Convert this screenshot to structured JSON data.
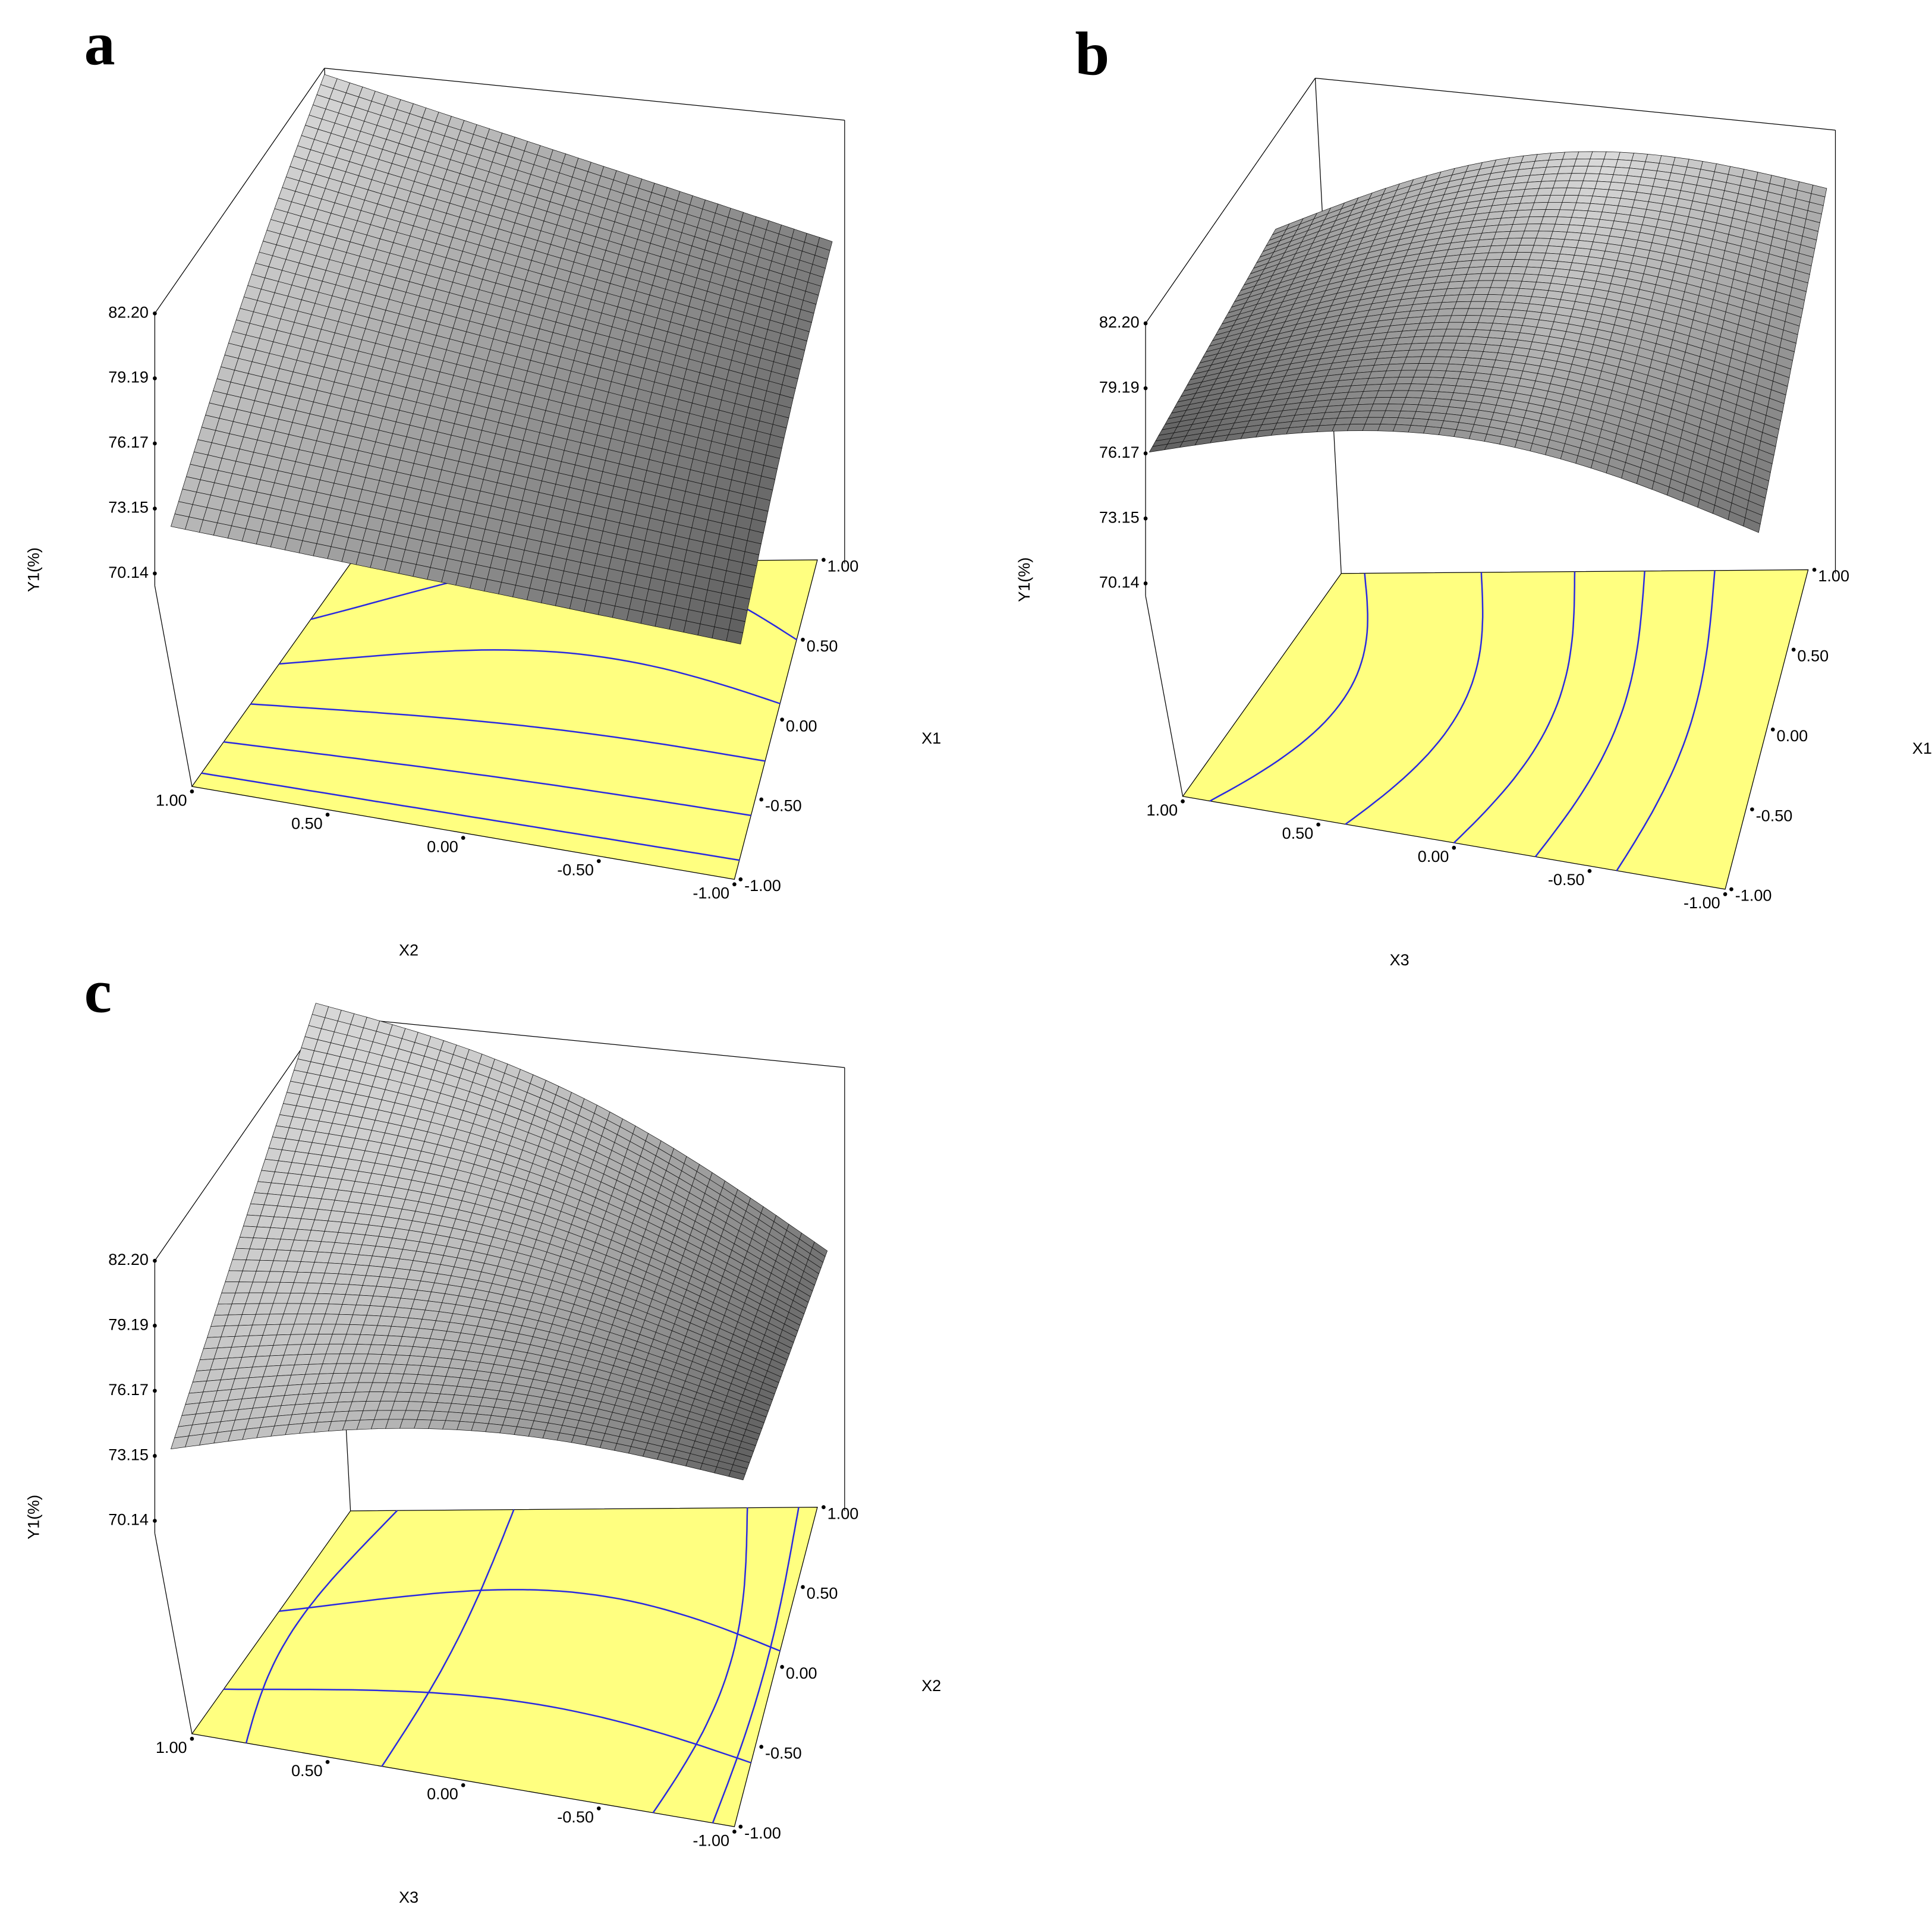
{
  "chart_data": [
    {
      "type": "surface3d",
      "label": "a",
      "zlabel": "Y1(%)",
      "xlabel": "X2",
      "ylabel": "X1",
      "zlim": [
        70.14,
        82.2
      ],
      "zticks": [
        70.14,
        73.15,
        76.17,
        79.19,
        {
          "value": 82.2,
          "label": "82.20"
        }
      ],
      "xlim": [
        1,
        -1
      ],
      "xticks": [
        {
          "value": 1,
          "label": "1.00"
        },
        {
          "value": 0.5,
          "label": "0.50"
        },
        {
          "value": 0,
          "label": "0.00"
        },
        {
          "value": -0.5,
          "label": "-0.50"
        },
        {
          "value": -1,
          "label": "-1.00"
        }
      ],
      "ylim": [
        -1,
        1
      ],
      "yticks": [
        {
          "value": -1,
          "label": "-1.00"
        },
        {
          "value": -0.5,
          "label": "-0.50"
        },
        {
          "value": 0,
          "label": "0.00"
        },
        {
          "value": 0.5,
          "label": "0.50"
        },
        {
          "value": 1,
          "label": "1.00"
        }
      ],
      "surface_color": "#808080",
      "floor_color": "#ffff80",
      "contour_color": "#2a2ae0"
    },
    {
      "type": "surface3d",
      "label": "b",
      "zlabel": "Y1(%)",
      "xlabel": "X3",
      "ylabel": "X1",
      "zlim": [
        70.14,
        82.2
      ],
      "zticks": [
        70.14,
        73.15,
        76.17,
        79.19,
        {
          "value": 82.2,
          "label": "82.20"
        }
      ],
      "xlim": [
        1,
        -1
      ],
      "xticks": [
        {
          "value": 1,
          "label": "1.00"
        },
        {
          "value": 0.5,
          "label": "0.50"
        },
        {
          "value": 0,
          "label": "0.00"
        },
        {
          "value": -0.5,
          "label": "-0.50"
        },
        {
          "value": -1,
          "label": "-1.00"
        }
      ],
      "ylim": [
        -1,
        1
      ],
      "yticks": [
        {
          "value": -1,
          "label": "-1.00"
        },
        {
          "value": -0.5,
          "label": "-0.50"
        },
        {
          "value": 0,
          "label": "0.00"
        },
        {
          "value": 0.5,
          "label": "0.50"
        },
        {
          "value": 1,
          "label": "1.00"
        }
      ],
      "surface_color": "#808080",
      "floor_color": "#ffff80",
      "contour_color": "#2a2ae0"
    },
    {
      "type": "surface3d",
      "label": "c",
      "zlabel": "Y1(%)",
      "xlabel": "X3",
      "ylabel": "X2",
      "zlim": [
        70.14,
        82.2
      ],
      "zticks": [
        70.14,
        73.15,
        76.17,
        79.19,
        {
          "value": 82.2,
          "label": "82.20"
        }
      ],
      "xlim": [
        1,
        -1
      ],
      "xticks": [
        {
          "value": 1,
          "label": "1.00"
        },
        {
          "value": 0.5,
          "label": "0.50"
        },
        {
          "value": 0,
          "label": "0.00"
        },
        {
          "value": -0.5,
          "label": "-0.50"
        },
        {
          "value": -1,
          "label": "-1.00"
        }
      ],
      "ylim": [
        -1,
        1
      ],
      "yticks": [
        {
          "value": -1,
          "label": "-1.00"
        },
        {
          "value": -0.5,
          "label": "-0.50"
        },
        {
          "value": 0,
          "label": "0.00"
        },
        {
          "value": 0.5,
          "label": "0.50"
        },
        {
          "value": 1,
          "label": "1.00"
        }
      ],
      "surface_color": "#808080",
      "floor_color": "#ffff80",
      "contour_color": "#2a2ae0"
    }
  ]
}
